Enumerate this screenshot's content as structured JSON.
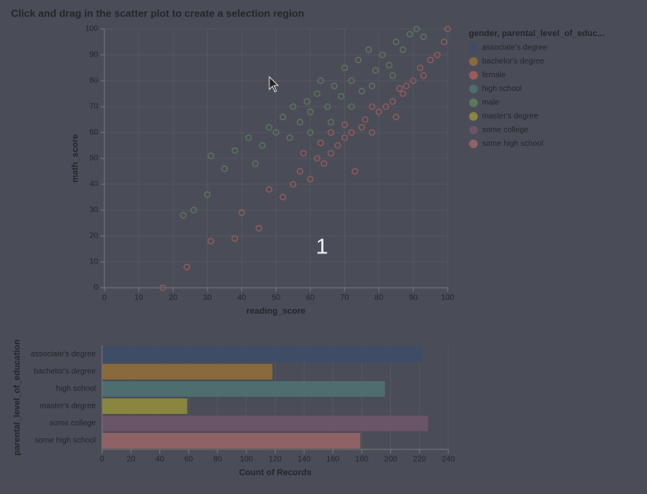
{
  "title": "Click and drag in the scatter plot to create a selection region",
  "annotation": "1",
  "legend_title": "gender, parental_level_of_educ...",
  "chart_data": [
    {
      "type": "scatter",
      "x_label": "reading_score",
      "y_label": "math_score",
      "xlim": [
        0,
        100
      ],
      "ylim": [
        0,
        100
      ],
      "xticks": [
        0,
        10,
        20,
        30,
        40,
        50,
        60,
        70,
        80,
        90,
        100
      ],
      "yticks": [
        0,
        10,
        20,
        30,
        40,
        50,
        60,
        70,
        80,
        90,
        100
      ],
      "grid": true,
      "series": [
        {
          "name": "female",
          "color": "#9a5b5b",
          "x": [
            17,
            24,
            31,
            38,
            40,
            45,
            48,
            52,
            55,
            57,
            60,
            62,
            64,
            66,
            68,
            70,
            72,
            73,
            75,
            76,
            78,
            80,
            82,
            84,
            85,
            87,
            88,
            90,
            92,
            93,
            95,
            97,
            99,
            100,
            63,
            70,
            78,
            86,
            58,
            66
          ],
          "y": [
            0,
            8,
            18,
            19,
            29,
            23,
            38,
            35,
            40,
            45,
            42,
            50,
            48,
            52,
            55,
            58,
            60,
            45,
            62,
            65,
            60,
            68,
            70,
            72,
            66,
            75,
            78,
            80,
            85,
            82,
            88,
            90,
            95,
            100,
            56,
            63,
            70,
            77,
            52,
            60
          ]
        },
        {
          "name": "male",
          "color": "#5a7a5c",
          "x": [
            23,
            26,
            30,
            31,
            35,
            38,
            42,
            44,
            46,
            48,
            50,
            52,
            54,
            55,
            57,
            59,
            60,
            62,
            63,
            65,
            67,
            69,
            70,
            72,
            74,
            75,
            77,
            79,
            81,
            83,
            85,
            87,
            89,
            91,
            93,
            60,
            66,
            72,
            78,
            84
          ],
          "y": [
            28,
            30,
            36,
            51,
            46,
            53,
            58,
            48,
            55,
            62,
            60,
            66,
            58,
            70,
            64,
            72,
            68,
            75,
            80,
            70,
            78,
            74,
            85,
            80,
            88,
            76,
            92,
            84,
            90,
            86,
            95,
            92,
            98,
            100,
            97,
            60,
            64,
            70,
            78,
            82
          ]
        }
      ]
    },
    {
      "type": "barh",
      "x_label": "Count of Records",
      "y_label": "parental_level_of_education",
      "categories": [
        "associate's degree",
        "bachelor's degree",
        "high school",
        "master's degree",
        "some college",
        "some high school"
      ],
      "values": [
        222,
        118,
        196,
        59,
        226,
        179
      ],
      "colors": [
        "#3e4c66",
        "#8a6a3c",
        "#4d6d6f",
        "#8a853f",
        "#6a5468",
        "#8f6266"
      ],
      "xlim": [
        0,
        240
      ],
      "xticks": [
        0,
        20,
        40,
        60,
        80,
        100,
        120,
        140,
        160,
        180,
        200,
        220,
        240
      ],
      "grid": true
    }
  ]
}
